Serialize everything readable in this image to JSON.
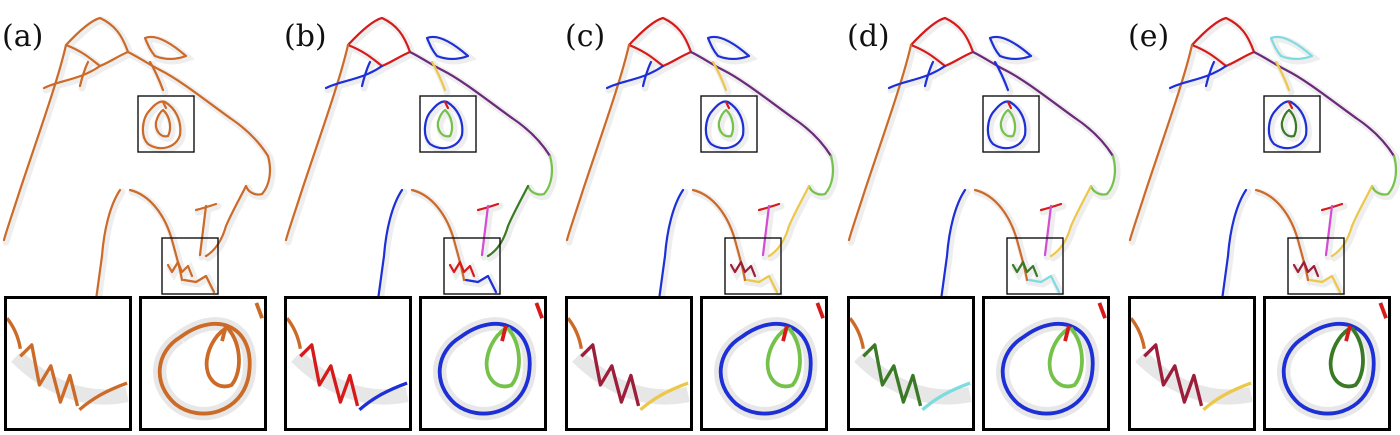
{
  "panels": [
    {
      "label": "(a)",
      "scheme": "a"
    },
    {
      "label": "(b)",
      "scheme": "b"
    },
    {
      "label": "(c)",
      "scheme": "c"
    },
    {
      "label": "(d)",
      "scheme": "d"
    },
    {
      "label": "(e)",
      "scheme": "e"
    }
  ],
  "colors": {
    "orange": "#cc6a28",
    "red": "#d61a1a",
    "blue": "#1d2fd6",
    "green": "#74c24a",
    "darkgreen": "#3a7a26",
    "purple": "#6b2a7a",
    "yellow": "#ecc84a",
    "magenta": "#d44bd4",
    "cyan": "#7ddce0",
    "maroon": "#9c1e3a",
    "shadow": "#cfcfcf"
  }
}
